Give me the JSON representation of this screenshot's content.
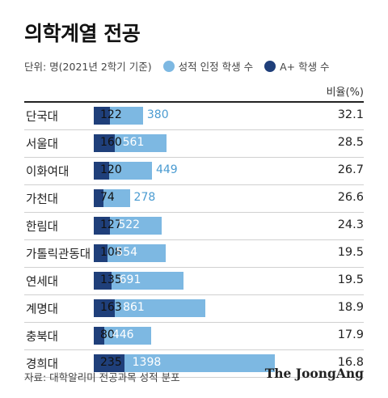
{
  "title": "의학계열 전공",
  "subtitle": "단위: 명(2021년 2학기 기준)",
  "ratio_header": "비율(%)",
  "source": "자료: 대학알리미 전공과목 성적 분포",
  "brand": "The JoongAng",
  "colors": {
    "total": "#7db8e2",
    "aplus": "#1f3f7a",
    "total_label": "#4a9bd1"
  },
  "chart_data": {
    "type": "bar",
    "orientation": "horizontal",
    "categories": [
      "단국대",
      "서울대",
      "이화여대",
      "가천대",
      "한림대",
      "가톨릭관동대",
      "연세대",
      "계명대",
      "충북대",
      "경희대"
    ],
    "series": [
      {
        "name": "성적 인정 학생 수",
        "values": [
          380,
          561,
          449,
          278,
          522,
          554,
          691,
          861,
          446,
          1398
        ]
      },
      {
        "name": "A+ 학생 수",
        "values": [
          122,
          160,
          120,
          74,
          127,
          108,
          135,
          163,
          80,
          235
        ]
      }
    ],
    "ratio": [
      "32.1",
      "28.5",
      "26.7",
      "26.6",
      "24.3",
      "19.5",
      "19.5",
      "18.9",
      "17.9",
      "16.8"
    ],
    "xlim": [
      0,
      1398
    ]
  }
}
